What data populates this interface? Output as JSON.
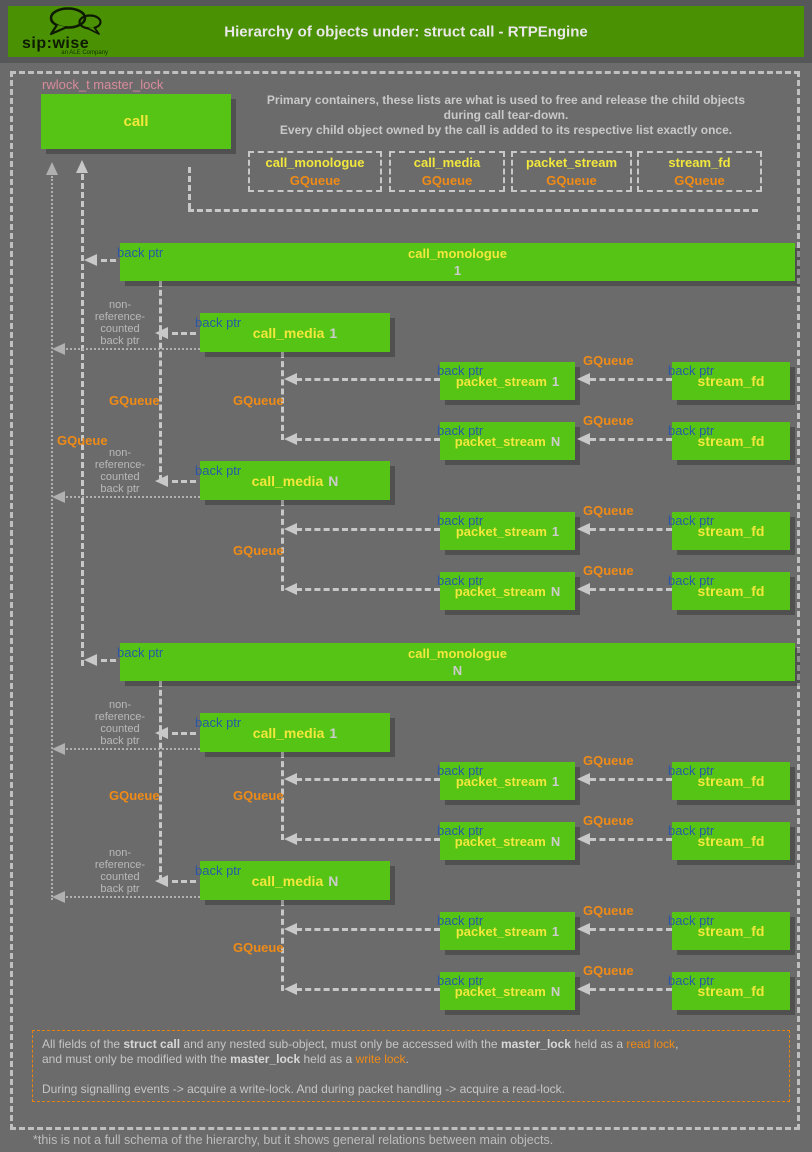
{
  "header": {
    "logo": {
      "brand": "sip:wise",
      "tagline": "an ALE Company"
    },
    "title": "Hierarchy of objects under: struct call - RTPEngine"
  },
  "intro": {
    "line1": "Primary containers, these lists are what is used to free and release the child objects",
    "line2": "during call tear-down.",
    "line3": "Every child object owned by the call is added to its respective list exactly once."
  },
  "labels": {
    "rwlock": "rwlock_t master_lock",
    "back_ptr": "back ptr",
    "gqueue": "GQueue",
    "nonref": [
      "non-",
      "reference-",
      "counted",
      "back ptr"
    ]
  },
  "queues": [
    {
      "name": "call_monologue",
      "type": "GQueue"
    },
    {
      "name": "call_media",
      "type": "GQueue"
    },
    {
      "name": "packet_stream",
      "type": "GQueue"
    },
    {
      "name": "stream_fd",
      "type": "GQueue"
    }
  ],
  "nodes": {
    "call": "call",
    "monologue": "call_monologue",
    "media": "call_media",
    "stream": "packet_stream",
    "fd": "stream_fd",
    "one": "1",
    "n": "N"
  },
  "note": {
    "l1a": "All fields of the ",
    "l1b": "struct call",
    "l1c": " and any nested sub-object, must only be accessed with the ",
    "l1d": "master_lock",
    "l1e": " held as a ",
    "l1f": "read lock",
    "l1g": ",",
    "l2a": "and must only be modified with the ",
    "l2b": "master_lock",
    "l2c": " held as a ",
    "l2d": "write lock",
    "l2e": ".",
    "l3": "During signalling events -> acquire a write-lock. And during packet handling -> acquire a read-lock."
  },
  "footer": "*this is not a full schema of the hierarchy, but it shows general relations between main objects.",
  "colors": {
    "background": "#6b6b6b",
    "header_band": "#565759",
    "header_green": "#4a9104",
    "box_green": "#55c414",
    "label_yellow": "#f2e73d",
    "gqueue_orange": "#ef8b16",
    "backptr_blue": "#2b57a8",
    "rwlock_pink": "#d98b9b",
    "note_border_orange": "#e8820c",
    "line_gray": "#c8c8c8",
    "dotted_gray": "#b0b0b0",
    "text_gray": "#c9c9c9"
  }
}
